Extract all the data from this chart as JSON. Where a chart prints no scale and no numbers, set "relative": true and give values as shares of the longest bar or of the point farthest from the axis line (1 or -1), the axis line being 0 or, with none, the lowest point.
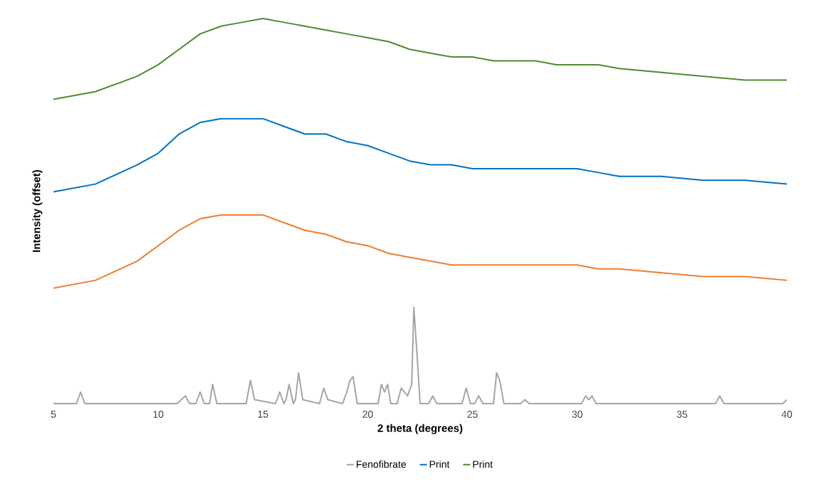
{
  "chart_data": {
    "type": "line",
    "relative": true,
    "xlabel": "2 theta (degrees)",
    "ylabel": "Intensity (offset)",
    "xlim": [
      5,
      40
    ],
    "xticks": [
      5,
      10,
      15,
      20,
      25,
      30,
      35,
      40
    ],
    "legend": "bottom",
    "grid": false,
    "marker": "none",
    "line_style": "solid",
    "series": [
      {
        "name": "Fenofibrate",
        "color": "#a5a5a5",
        "x": [
          5,
          6.1,
          6.3,
          6.5,
          10.9,
          11.3,
          11.5,
          11.8,
          12.0,
          12.2,
          12.45,
          12.6,
          12.8,
          14.2,
          14.4,
          14.6,
          15.6,
          15.8,
          16.0,
          16.1,
          16.25,
          16.45,
          16.55,
          16.7,
          16.9,
          17.7,
          17.9,
          18.1,
          18.8,
          19.0,
          19.15,
          19.3,
          19.5,
          20.5,
          20.65,
          20.8,
          20.95,
          21.1,
          21.4,
          21.6,
          21.9,
          22.1,
          22.2,
          22.35,
          22.5,
          22.9,
          23.1,
          23.3,
          24.5,
          24.7,
          24.9,
          25.1,
          25.3,
          25.5,
          26.0,
          26.15,
          26.3,
          26.5,
          27.3,
          27.5,
          27.7,
          30.2,
          30.4,
          30.55,
          30.7,
          30.9,
          36.6,
          36.8,
          37.0,
          39.8,
          40
        ],
        "values": [
          0,
          0,
          0.03,
          0,
          0,
          0.02,
          0,
          0,
          0.03,
          0,
          0,
          0.05,
          0,
          0,
          0.06,
          0.01,
          0,
          0.03,
          0,
          0.01,
          0.05,
          0,
          0.01,
          0.08,
          0.01,
          0,
          0.04,
          0.01,
          0,
          0.03,
          0.06,
          0.07,
          0,
          0,
          0.05,
          0.03,
          0.05,
          0,
          0,
          0.04,
          0.02,
          0.05,
          0.25,
          0.13,
          0,
          0,
          0.02,
          0,
          0,
          0.04,
          0,
          0,
          0.02,
          0,
          0,
          0.08,
          0.06,
          0,
          0,
          0.01,
          0,
          0,
          0.02,
          0.01,
          0.02,
          0,
          0,
          0.02,
          0,
          0,
          0.01
        ]
      },
      {
        "color": "#ed7d31",
        "x": [
          5,
          7,
          9,
          10,
          11,
          12,
          13,
          14,
          15,
          16,
          17,
          18,
          19,
          20,
          21,
          22,
          23,
          24,
          25,
          26,
          27,
          28,
          29,
          30,
          31,
          32,
          34,
          36,
          38,
          40
        ],
        "values": [
          0.3,
          0.32,
          0.37,
          0.41,
          0.45,
          0.48,
          0.49,
          0.49,
          0.49,
          0.47,
          0.45,
          0.44,
          0.42,
          0.41,
          0.39,
          0.38,
          0.37,
          0.36,
          0.36,
          0.36,
          0.36,
          0.36,
          0.36,
          0.36,
          0.35,
          0.35,
          0.34,
          0.33,
          0.33,
          0.32
        ]
      },
      {
        "name": "Print",
        "color": "#0070c0",
        "x": [
          5,
          7,
          9,
          10,
          11,
          12,
          13,
          14,
          15,
          16,
          17,
          18,
          19,
          20,
          21,
          22,
          23,
          24,
          25,
          26,
          27,
          28,
          29,
          30,
          31,
          32,
          34,
          36,
          38,
          40
        ],
        "values": [
          0.55,
          0.57,
          0.62,
          0.65,
          0.7,
          0.73,
          0.74,
          0.74,
          0.74,
          0.72,
          0.7,
          0.7,
          0.68,
          0.67,
          0.65,
          0.63,
          0.62,
          0.62,
          0.61,
          0.61,
          0.61,
          0.61,
          0.61,
          0.61,
          0.6,
          0.59,
          0.59,
          0.58,
          0.58,
          0.57
        ]
      },
      {
        "name": "Print",
        "color": "#4e8a32",
        "x": [
          5,
          7,
          9,
          10,
          11,
          12,
          13,
          14,
          15,
          16,
          17,
          18,
          19,
          20,
          21,
          22,
          23,
          24,
          25,
          26,
          27,
          28,
          29,
          30,
          31,
          32,
          34,
          36,
          38,
          40
        ],
        "values": [
          0.79,
          0.81,
          0.85,
          0.88,
          0.92,
          0.96,
          0.98,
          0.99,
          1.0,
          0.99,
          0.98,
          0.97,
          0.96,
          0.95,
          0.94,
          0.92,
          0.91,
          0.9,
          0.9,
          0.89,
          0.89,
          0.89,
          0.88,
          0.88,
          0.88,
          0.87,
          0.86,
          0.85,
          0.84,
          0.84
        ]
      }
    ]
  }
}
